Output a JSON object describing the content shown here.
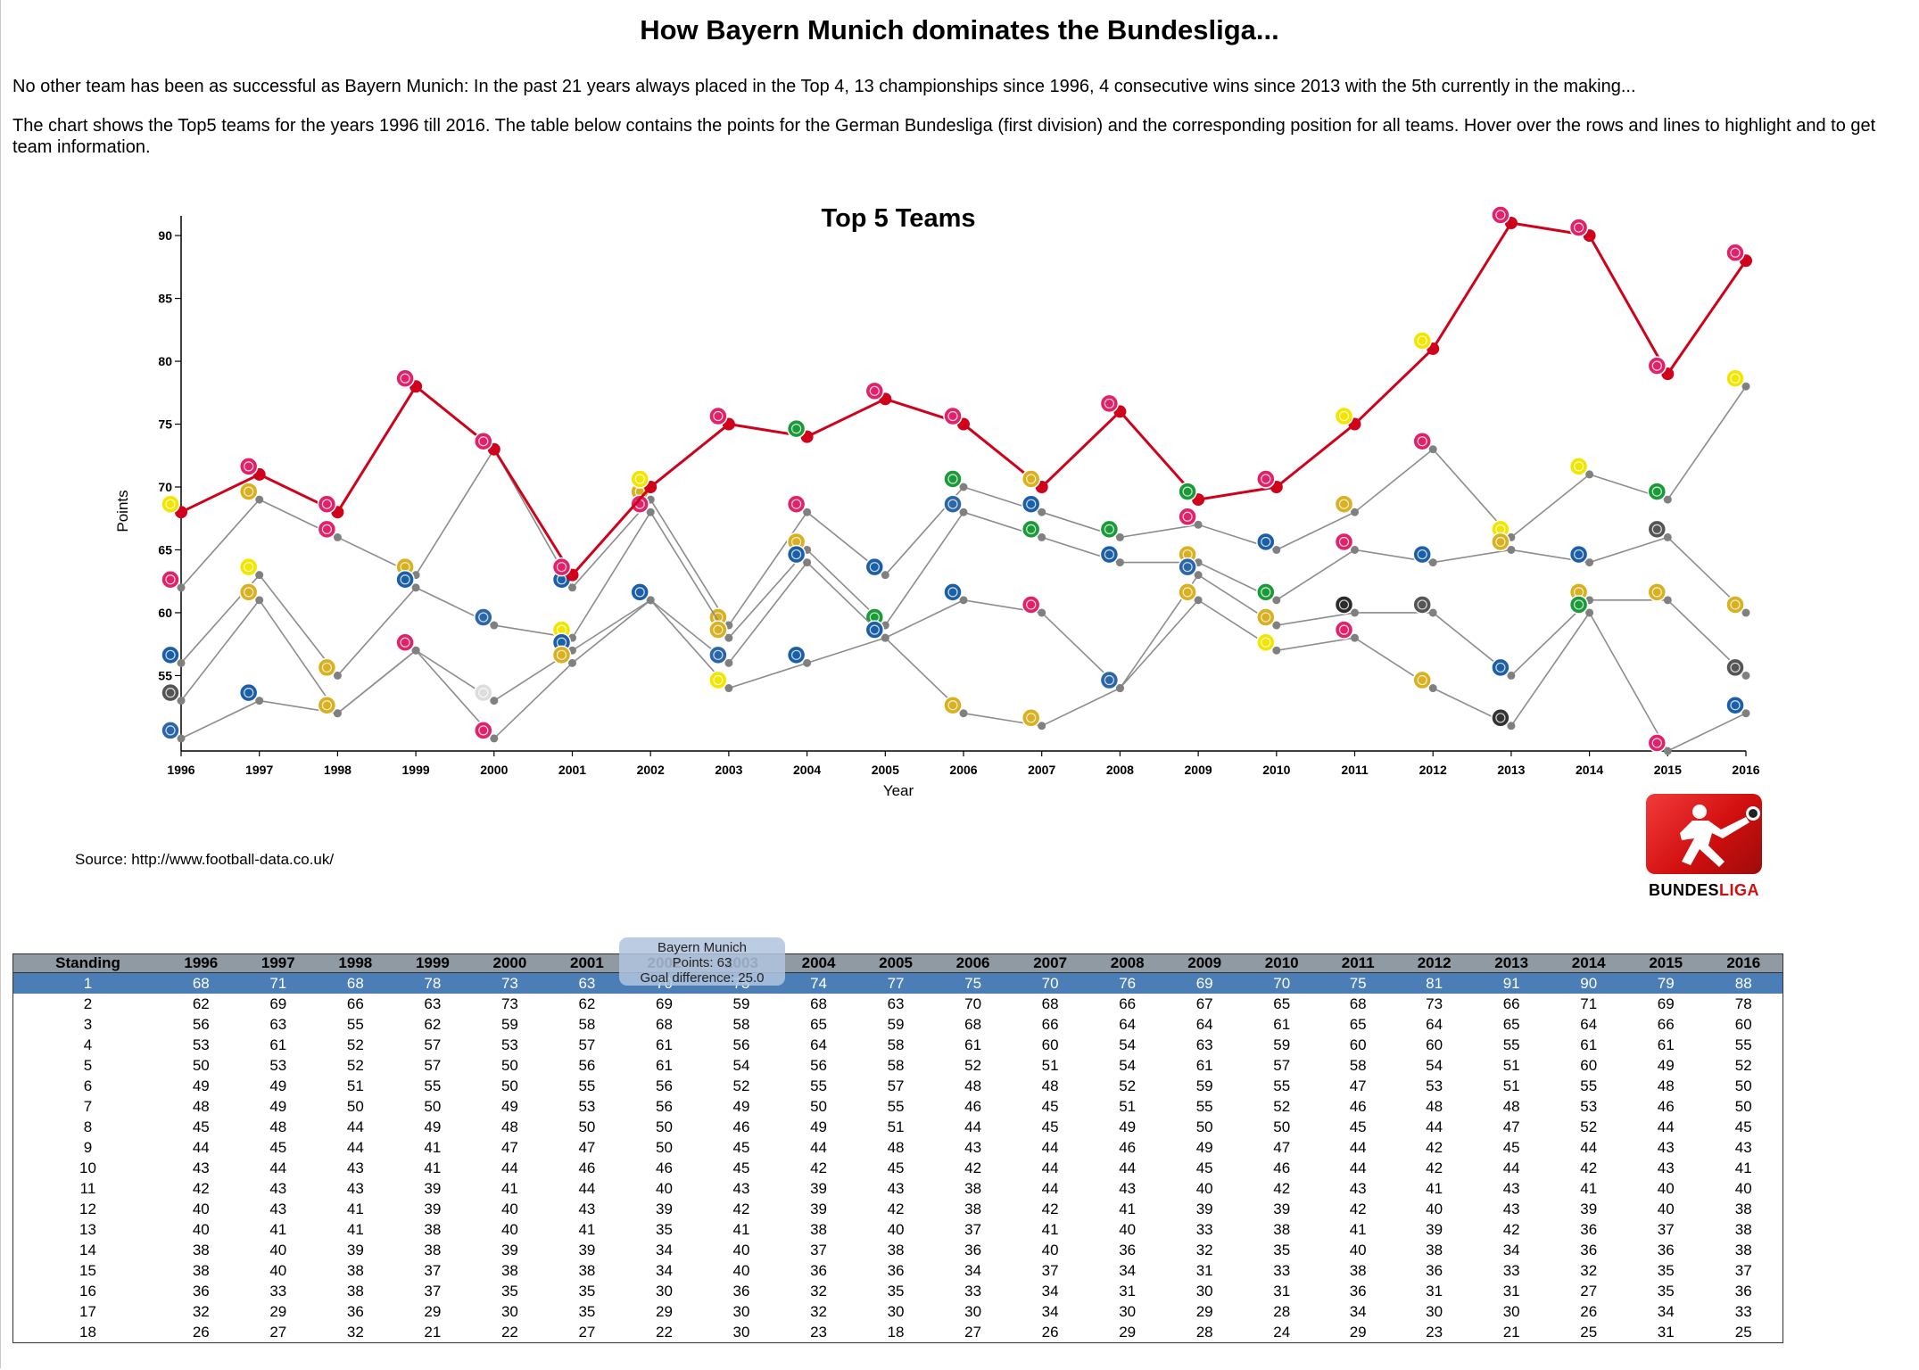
{
  "page": {
    "title": "How Bayern Munich dominates the Bundesliga...",
    "intro1": "No other team has been as successful as Bayern Munich: In the past 21 years always placed in the Top 4, 13 championships since 1996, 4 consecutive wins since 2013 with the 5th currently in the making...",
    "intro2": "The chart shows the Top5 teams for the years 1996 till 2016. The table below contains the points for the German Bundesliga (first division) and the corresponding position for all teams. Hover over the rows and lines to highlight and to get team information.",
    "source": "Source: http://www.football-data.co.uk/",
    "logo_text_a": "BUNDES",
    "logo_text_b": "LIGA"
  },
  "tooltip": {
    "team": "Bayern Munich",
    "points": "Points: 63",
    "goal_diff": "Goal difference: 25.0"
  },
  "colors": {
    "highlight": "#d0021b",
    "lines": "#8c8c8c",
    "row_highlight": "#4b7db6",
    "header": "#8f9aa3"
  },
  "chart_data": {
    "type": "line",
    "title": "Top 5 Teams",
    "xlabel": "Year",
    "ylabel": "Points",
    "ylim": [
      49,
      91
    ],
    "yticks": [
      55,
      60,
      65,
      70,
      75,
      80,
      85,
      90
    ],
    "x": [
      1996,
      1997,
      1998,
      1999,
      2000,
      2001,
      2002,
      2003,
      2004,
      2005,
      2006,
      2007,
      2008,
      2009,
      2010,
      2011,
      2012,
      2013,
      2014,
      2015,
      2016
    ],
    "highlight_series": 0,
    "series": [
      {
        "values": [
          68,
          71,
          68,
          78,
          73,
          63,
          70,
          75,
          74,
          77,
          75,
          70,
          76,
          69,
          70,
          75,
          81,
          91,
          90,
          79,
          88
        ]
      },
      {
        "values": [
          62,
          69,
          66,
          63,
          73,
          62,
          69,
          59,
          68,
          63,
          70,
          68,
          66,
          67,
          65,
          68,
          73,
          66,
          71,
          69,
          78
        ]
      },
      {
        "values": [
          56,
          63,
          55,
          62,
          59,
          58,
          68,
          58,
          65,
          59,
          68,
          66,
          64,
          64,
          61,
          65,
          64,
          65,
          64,
          66,
          60
        ]
      },
      {
        "values": [
          53,
          61,
          52,
          57,
          53,
          57,
          61,
          56,
          64,
          58,
          61,
          60,
          54,
          63,
          59,
          60,
          60,
          55,
          61,
          61,
          55
        ]
      },
      {
        "values": [
          50,
          53,
          52,
          57,
          50,
          56,
          61,
          54,
          56,
          58,
          52,
          51,
          54,
          61,
          57,
          58,
          54,
          51,
          60,
          49,
          52
        ]
      }
    ],
    "badges": [
      [
        "#f2e600",
        "#e0226b",
        "#e0226b",
        "#e0226b",
        "#e0226b",
        "#e0226b",
        "#f2e600",
        "#e0226b",
        "#1b9a3a",
        "#e0226b",
        "#e0226b",
        "#d9b020",
        "#e0226b",
        "#1b9a3a",
        "#e0226b",
        "#f2e600",
        "#f2e600",
        "#e0226b",
        "#e0226b",
        "#e0226b",
        "#e0226b"
      ],
      [
        "#e0226b",
        "#d9b020",
        "#e0226b",
        "#d9b020",
        "#d9b020",
        "#1a5fa8",
        "#d9b020",
        "#d9b020",
        "#e0226b",
        "#1a5fa8",
        "#1b9a3a",
        "#1a5fa8",
        "#1b9a3a",
        "#e0226b",
        "#1a5fa8",
        "#d9b020",
        "#e0226b",
        "#f2e600",
        "#f2e600",
        "#1b9a3a",
        "#f2e600"
      ],
      [
        "#1a5fa8",
        "#f2e600",
        "#d9b020",
        "#1a5fa8",
        "#2a66a8",
        "#f2e600",
        "#e0226b",
        "#d9b020",
        "#d9b020",
        "#1b9a3a",
        "#2a66a8",
        "#1b9a3a",
        "#1a5fa8",
        "#d9b020",
        "#1b9a3a",
        "#e0226b",
        "#1a5fa8",
        "#d9b020",
        "#1a5fa8",
        "#555555",
        "#d9b020"
      ],
      [
        "#555555",
        "#d9b020",
        "#1a5fa8",
        "#f2e600",
        "#dddddd",
        "#1a5fa8",
        "#1a5fa8",
        "#2a66a8",
        "#1a5fa8",
        "#d9b020",
        "#1a5fa8",
        "#e0226b",
        "#1b9a3a",
        "#2a66a8",
        "#d9b020",
        "#2b2b2b",
        "#555555",
        "#1a5fa8",
        "#d9b020",
        "#d9b020",
        "#555555"
      ],
      [
        "#2a66a8",
        "#1a5fa8",
        "#d9b020",
        "#e0226b",
        "#e0226b",
        "#d9b020",
        "#1a5fa8",
        "#f2e600",
        "#1a5fa8",
        "#1a5fa8",
        "#d9b020",
        "#d9b020",
        "#2a66a8",
        "#d9b020",
        "#f2e600",
        "#e0226b",
        "#d9b020",
        "#333333",
        "#1b9a3a",
        "#e0226b",
        "#1a5fa8"
      ]
    ]
  },
  "table": {
    "headers": [
      "Standing",
      "1996",
      "1997",
      "1998",
      "1999",
      "2000",
      "2001",
      "2002",
      "2003",
      "2004",
      "2005",
      "2006",
      "2007",
      "2008",
      "2009",
      "2010",
      "2011",
      "2012",
      "2013",
      "2014",
      "2015",
      "2016"
    ],
    "highlight_row": 0,
    "rows": [
      [
        "1",
        "68",
        "71",
        "68",
        "78",
        "73",
        "63",
        "70",
        "75",
        "74",
        "77",
        "75",
        "70",
        "76",
        "69",
        "70",
        "75",
        "81",
        "91",
        "90",
        "79",
        "88"
      ],
      [
        "2",
        "62",
        "69",
        "66",
        "63",
        "73",
        "62",
        "69",
        "59",
        "68",
        "63",
        "70",
        "68",
        "66",
        "67",
        "65",
        "68",
        "73",
        "66",
        "71",
        "69",
        "78"
      ],
      [
        "3",
        "56",
        "63",
        "55",
        "62",
        "59",
        "58",
        "68",
        "58",
        "65",
        "59",
        "68",
        "66",
        "64",
        "64",
        "61",
        "65",
        "64",
        "65",
        "64",
        "66",
        "60"
      ],
      [
        "4",
        "53",
        "61",
        "52",
        "57",
        "53",
        "57",
        "61",
        "56",
        "64",
        "58",
        "61",
        "60",
        "54",
        "63",
        "59",
        "60",
        "60",
        "55",
        "61",
        "61",
        "55"
      ],
      [
        "5",
        "50",
        "53",
        "52",
        "57",
        "50",
        "56",
        "61",
        "54",
        "56",
        "58",
        "52",
        "51",
        "54",
        "61",
        "57",
        "58",
        "54",
        "51",
        "60",
        "49",
        "52"
      ],
      [
        "6",
        "49",
        "49",
        "51",
        "55",
        "50",
        "55",
        "56",
        "52",
        "55",
        "57",
        "48",
        "48",
        "52",
        "59",
        "55",
        "47",
        "53",
        "51",
        "55",
        "48",
        "50"
      ],
      [
        "7",
        "48",
        "49",
        "50",
        "50",
        "49",
        "53",
        "56",
        "49",
        "50",
        "55",
        "46",
        "45",
        "51",
        "55",
        "52",
        "46",
        "48",
        "48",
        "53",
        "46",
        "50"
      ],
      [
        "8",
        "45",
        "48",
        "44",
        "49",
        "48",
        "50",
        "50",
        "46",
        "49",
        "51",
        "44",
        "45",
        "49",
        "50",
        "50",
        "45",
        "44",
        "47",
        "52",
        "44",
        "45"
      ],
      [
        "9",
        "44",
        "45",
        "44",
        "41",
        "47",
        "47",
        "50",
        "45",
        "44",
        "48",
        "43",
        "44",
        "46",
        "49",
        "47",
        "44",
        "42",
        "45",
        "44",
        "43",
        "43"
      ],
      [
        "10",
        "43",
        "44",
        "43",
        "41",
        "44",
        "46",
        "46",
        "45",
        "42",
        "45",
        "42",
        "44",
        "44",
        "45",
        "46",
        "44",
        "42",
        "44",
        "42",
        "43",
        "41"
      ],
      [
        "11",
        "42",
        "43",
        "43",
        "39",
        "41",
        "44",
        "40",
        "43",
        "39",
        "43",
        "38",
        "44",
        "43",
        "40",
        "42",
        "43",
        "41",
        "43",
        "41",
        "40",
        "40"
      ],
      [
        "12",
        "40",
        "43",
        "41",
        "39",
        "40",
        "43",
        "39",
        "42",
        "39",
        "42",
        "38",
        "42",
        "41",
        "39",
        "39",
        "42",
        "40",
        "43",
        "39",
        "40",
        "38"
      ],
      [
        "13",
        "40",
        "41",
        "41",
        "38",
        "40",
        "41",
        "35",
        "41",
        "38",
        "40",
        "37",
        "41",
        "40",
        "33",
        "38",
        "41",
        "39",
        "42",
        "36",
        "37",
        "38"
      ],
      [
        "14",
        "38",
        "40",
        "39",
        "38",
        "39",
        "39",
        "34",
        "40",
        "37",
        "38",
        "36",
        "40",
        "36",
        "32",
        "35",
        "40",
        "38",
        "34",
        "36",
        "36",
        "38"
      ],
      [
        "15",
        "38",
        "40",
        "38",
        "37",
        "38",
        "38",
        "34",
        "40",
        "36",
        "36",
        "34",
        "37",
        "34",
        "31",
        "33",
        "38",
        "36",
        "33",
        "32",
        "35",
        "37"
      ],
      [
        "16",
        "36",
        "33",
        "38",
        "37",
        "35",
        "35",
        "30",
        "36",
        "32",
        "35",
        "33",
        "34",
        "31",
        "30",
        "31",
        "36",
        "31",
        "31",
        "27",
        "35",
        "36"
      ],
      [
        "17",
        "32",
        "29",
        "36",
        "29",
        "30",
        "35",
        "29",
        "30",
        "32",
        "30",
        "30",
        "34",
        "30",
        "29",
        "28",
        "34",
        "30",
        "30",
        "26",
        "34",
        "33"
      ],
      [
        "18",
        "26",
        "27",
        "32",
        "21",
        "22",
        "27",
        "22",
        "30",
        "23",
        "18",
        "27",
        "26",
        "29",
        "28",
        "24",
        "29",
        "23",
        "21",
        "25",
        "31",
        "25"
      ]
    ]
  }
}
